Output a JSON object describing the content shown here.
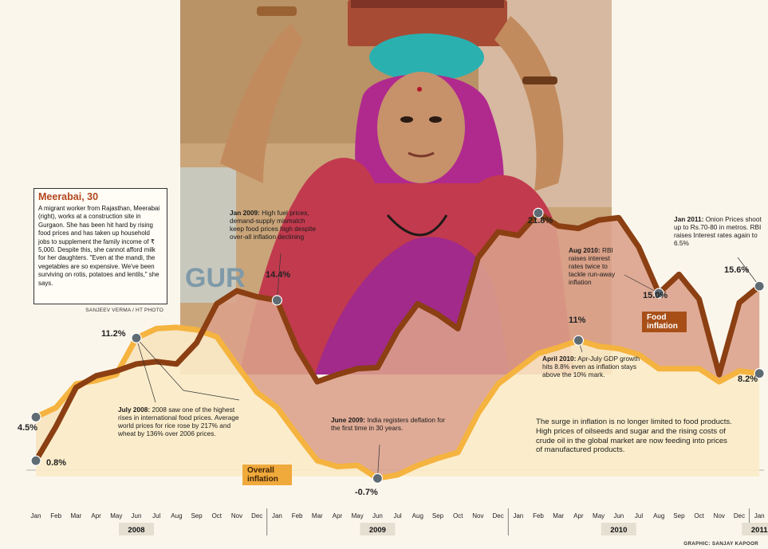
{
  "sidebar": {
    "title": "Meerabai, 30",
    "body": "A migrant worker from Rajasthan, Meerabai (right), works at a construction site in Gurgaon. She has been hit hard by rising food prices and has taken up household jobs to supplement the family income of ₹ 5,000. Despite this, she cannot afford milk for her daughters. \"Even at the mandi, the vegetables are so expensive. We've been surviving on rotis, potatoes and lentils,\" she says.",
    "photo_credit": "SANJEEV VERMA / HT PHOTO"
  },
  "annotations": {
    "jul2008": {
      "head": "July 2008:",
      "text": "2008 saw one of the highest rises in international food prices. Average world prices for rice rose by 217% and wheat by 136% over 2006 prices."
    },
    "jan2009": {
      "head": "Jan 2009:",
      "text": "High fuel prices, demand-supply mismatch keep food prices high despite over-all inflation declining"
    },
    "jun2009": {
      "head": "June 2009:",
      "text": "India registers deflation for the first time in 30 years."
    },
    "aug2010": {
      "head": "Aug 2010:",
      "text": "RBI raises interest rates twice to tackle run-away inflation"
    },
    "apr2010": {
      "head": "April 2010:",
      "text": "Apr-July GDP growth hits 8.8% even as inflation stays above the 10% mark."
    },
    "jan2011": {
      "head": "Jan 2011:",
      "text": "Onion Prices shoot up to Rs.70-80 in metros. RBI raises Interest rates again to 6.5%"
    }
  },
  "summary": "The surge in inflation is no longer limited to food products. High prices of oilseeds and sugar and the rising costs of crude oil in the global market are now feeding into prices of manufactured products.",
  "graphic_credit": "GRAPHIC: SANJAY KAPOOR",
  "colors": {
    "food": "#8b3f12",
    "food_fill": "#dba18a",
    "overall": "#f5b33f",
    "overall_fill": "#fbecc8",
    "marker": "#5f6b73",
    "bg": "#fbf6ec"
  },
  "chart_data": {
    "type": "line",
    "title": "",
    "x": [
      "Jan",
      "Feb",
      "Mar",
      "Apr",
      "May",
      "Jun",
      "Jul",
      "Aug",
      "Sep",
      "Oct",
      "Nov",
      "Dec",
      "Jan",
      "Feb",
      "Mar",
      "Apr",
      "May",
      "Jun",
      "Jul",
      "Aug",
      "Sep",
      "Oct",
      "Nov",
      "Dec",
      "Jan",
      "Feb",
      "Mar",
      "Apr",
      "May",
      "Jun",
      "Jul",
      "Aug",
      "Sep",
      "Oct",
      "Nov",
      "Dec",
      "Jan"
    ],
    "years": [
      {
        "label": "2008",
        "start_index": 5
      },
      {
        "label": "2009",
        "start_index": 17
      },
      {
        "label": "2010",
        "start_index": 29
      },
      {
        "label": "2011",
        "start_index": 36
      }
    ],
    "series": [
      {
        "name": "Overall inflation",
        "values": [
          4.5,
          5.3,
          7.3,
          7.6,
          8.1,
          11.2,
          12.0,
          12.1,
          11.9,
          11.3,
          8.9,
          6.6,
          5.3,
          3.0,
          0.8,
          0.3,
          0.4,
          -0.7,
          -0.4,
          0.4,
          1.0,
          1.5,
          4.8,
          7.3,
          8.6,
          9.9,
          10.4,
          11.0,
          10.5,
          10.3,
          9.8,
          8.6,
          8.6,
          8.6,
          7.5,
          8.4,
          8.2
        ]
      },
      {
        "name": "Food inflation",
        "values": [
          0.8,
          3.7,
          7.0,
          8.0,
          8.4,
          9.0,
          9.2,
          9.0,
          10.8,
          14.1,
          15.2,
          14.7,
          14.4,
          10.3,
          7.5,
          8.1,
          8.6,
          8.7,
          11.8,
          14.1,
          13.2,
          12.0,
          18.0,
          20.2,
          19.9,
          21.8,
          20.7,
          20.5,
          21.2,
          21.4,
          18.9,
          15.0,
          16.6,
          14.5,
          8.1,
          14.2,
          15.6
        ]
      }
    ],
    "labeled_points": [
      {
        "series": "Overall inflation",
        "index": 0,
        "label": "4.5%"
      },
      {
        "series": "Overall inflation",
        "index": 5,
        "label": "11.2%"
      },
      {
        "series": "Overall inflation",
        "index": 17,
        "label": "-0.7%"
      },
      {
        "series": "Overall inflation",
        "index": 27,
        "label": "11%"
      },
      {
        "series": "Overall inflation",
        "index": 36,
        "label": "8.2%"
      },
      {
        "series": "Food inflation",
        "index": 0,
        "label": "0.8%"
      },
      {
        "series": "Food inflation",
        "index": 12,
        "label": "14.4%"
      },
      {
        "series": "Food inflation",
        "index": 25,
        "label": "21.8%"
      },
      {
        "series": "Food inflation",
        "index": 31,
        "label": "15.0%"
      },
      {
        "series": "Food inflation",
        "index": 36,
        "label": "15.6%"
      }
    ],
    "grid": false
  }
}
